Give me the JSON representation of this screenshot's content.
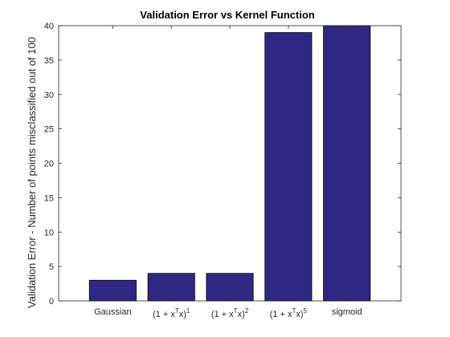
{
  "chart_data": {
    "type": "bar",
    "title": "Validation Error vs Kernel Function",
    "xlabel": "",
    "ylabel": "Validation Error - Number of points misclassified out of 100",
    "categories": [
      {
        "base": "Gaussian",
        "sup": "",
        "tail": ""
      },
      {
        "base": "(1 + x",
        "sup": "T",
        "tail": "x)",
        "exp": "1"
      },
      {
        "base": "(1 + x",
        "sup": "T",
        "tail": "x)",
        "exp": "2"
      },
      {
        "base": "(1 + x",
        "sup": "T",
        "tail": "x)",
        "exp": "5"
      },
      {
        "base": "sigmoid",
        "sup": "",
        "tail": ""
      }
    ],
    "values": [
      3,
      4,
      4,
      39,
      40
    ],
    "ylim": [
      0,
      40
    ],
    "yticks": [
      0,
      5,
      10,
      15,
      20,
      25,
      30,
      35,
      40
    ],
    "grid": false,
    "bar_color": "#2e2882",
    "edge_color": "#000000"
  }
}
